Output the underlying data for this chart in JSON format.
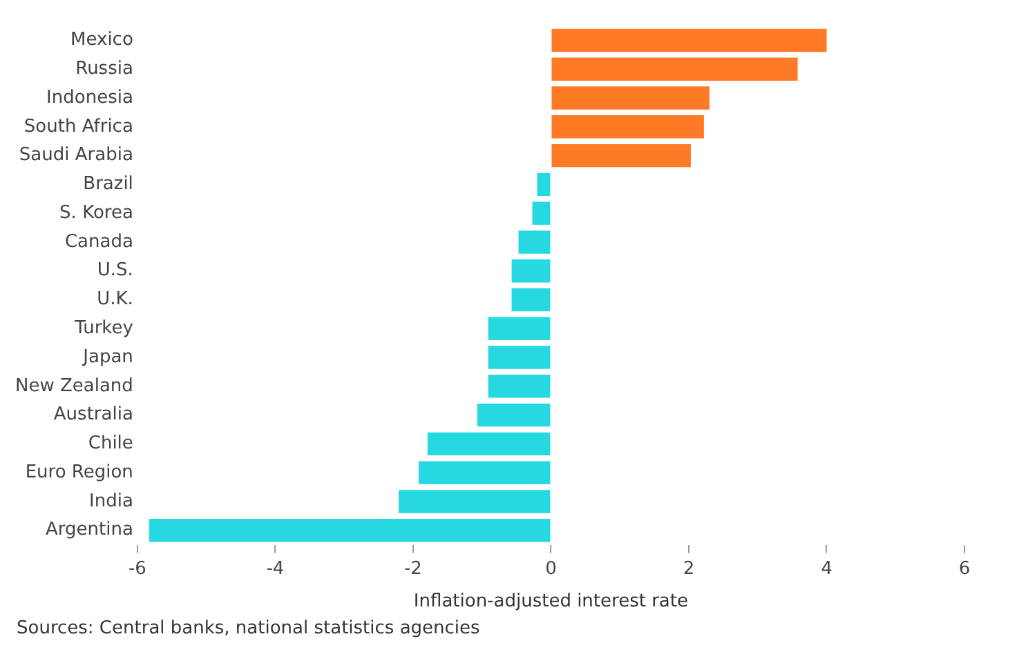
{
  "chart_data": {
    "type": "bar",
    "orientation": "horizontal",
    "categories": [
      "Mexico",
      "Russia",
      "Indonesia",
      "South Africa",
      "Saudi Arabia",
      "Brazil",
      "S. Korea",
      "Canada",
      "U.S.",
      "U.K.",
      "Turkey",
      "Japan",
      "New Zealand",
      "Australia",
      "Chile",
      "Euro Region",
      "India",
      "Argentina"
    ],
    "values": [
      4.0,
      3.58,
      2.3,
      2.22,
      2.03,
      -0.2,
      -0.27,
      -0.47,
      -0.57,
      -0.57,
      -0.91,
      -0.91,
      -0.91,
      -1.07,
      -1.79,
      -1.92,
      -2.21,
      -5.83
    ],
    "colors": [
      "#ff7a26",
      "#ff7a26",
      "#ff7a26",
      "#ff7a26",
      "#ff7a26",
      "#26d9e0",
      "#26d9e0",
      "#26d9e0",
      "#26d9e0",
      "#26d9e0",
      "#26d9e0",
      "#26d9e0",
      "#26d9e0",
      "#26d9e0",
      "#26d9e0",
      "#26d9e0",
      "#26d9e0",
      "#26d9e0"
    ],
    "xlabel": "Inflation-adjusted interest rate",
    "xlim": [
      -6,
      6
    ],
    "xticks": [
      -6,
      -4,
      -2,
      0,
      2,
      4,
      6
    ],
    "grid": false,
    "legend": false,
    "annotations": [
      "Sources: Central banks, national statistics agencies"
    ]
  }
}
